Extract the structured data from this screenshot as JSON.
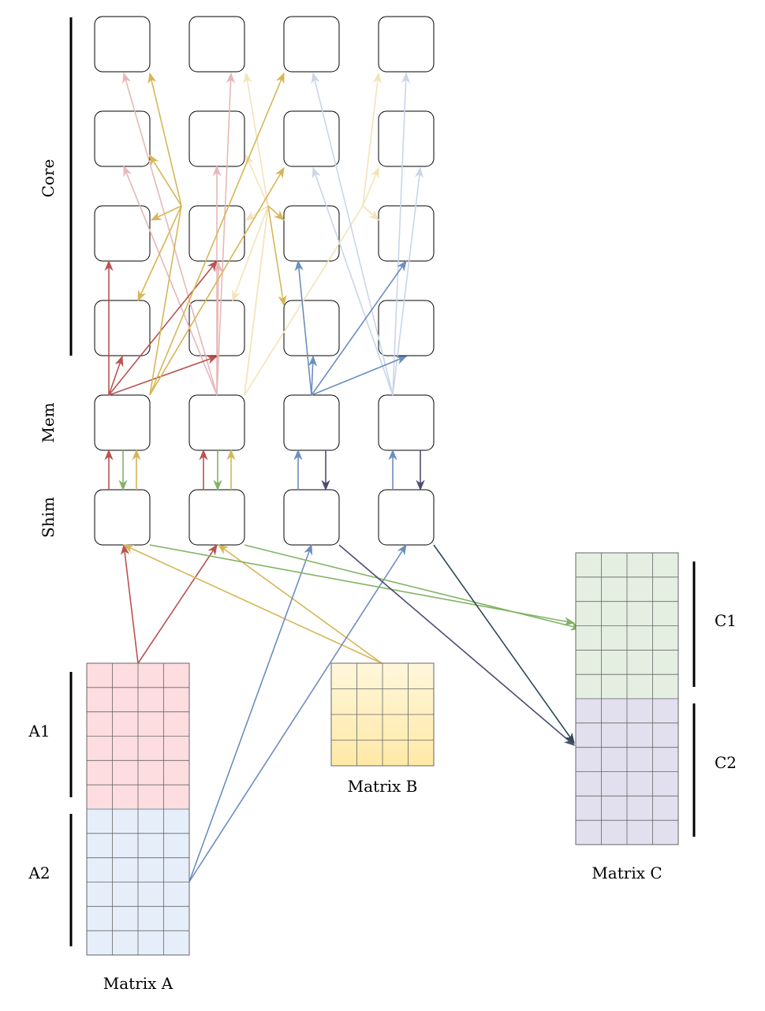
{
  "labels": {
    "core": "Core",
    "mem": "Mem",
    "shim": "Shim",
    "a1": "A1",
    "a2": "A2",
    "c1": "C1",
    "c2": "C2",
    "matrix_a": "Matrix A",
    "matrix_b": "Matrix B",
    "matrix_c": "Matrix C"
  },
  "colors": {
    "red": "#b85450",
    "red_faint": "#e6b8b7",
    "yellow": "#d6b656",
    "yellow_faint": "#f2e4b8",
    "blue": "#6c8ebf",
    "blue_faint": "#c9d6e8",
    "green": "#82b366",
    "navy": "#4d4d73",
    "darkslate": "#2f4858",
    "a1_fill": "#fddde0",
    "a2_fill": "#e6eefa",
    "b_fill_top": "#fff7dc",
    "b_fill_bottom": "#ffe9a6",
    "c1_fill": "#e4efe1",
    "c2_fill": "#e2e0ee"
  },
  "grid": {
    "core_rows": 4,
    "columns": 4
  }
}
